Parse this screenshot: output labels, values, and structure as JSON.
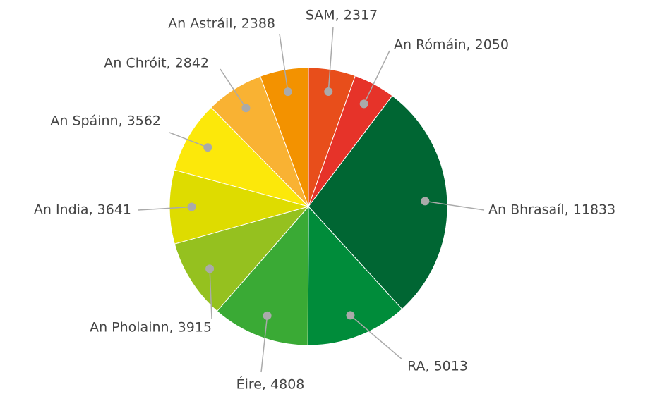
{
  "chart_data": {
    "type": "pie",
    "categories": [
      "SAM, 2317",
      "An Rómáin, 2050",
      "An Bhrasaíl, 11833",
      "RA, 5013",
      "Éire, 4808",
      "An Pholainn, 3915",
      "An India, 3641",
      "An Spáinn, 3562",
      "An Chróit, 2842",
      "An Astráil, 2388"
    ],
    "values": [
      2317,
      2050,
      11833,
      5013,
      4808,
      3915,
      3641,
      3562,
      2842,
      2388
    ],
    "colors": [
      "#e84e1b",
      "#e63329",
      "#006633",
      "#008c3a",
      "#3aaa35",
      "#95c11f",
      "#dedc00",
      "#fce80a",
      "#f9b233",
      "#f39200"
    ]
  }
}
